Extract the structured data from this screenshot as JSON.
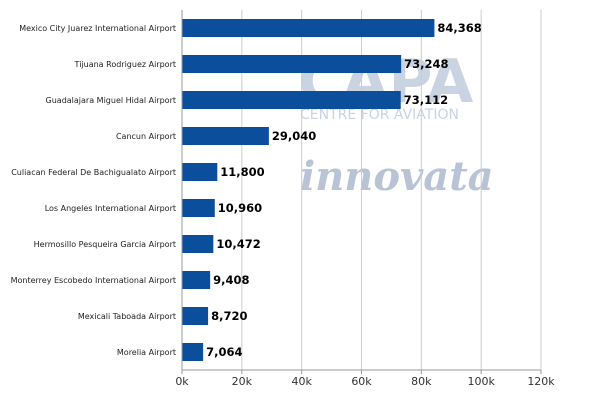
{
  "chart_data": {
    "type": "bar",
    "orientation": "horizontal",
    "title": "",
    "xlabel": "",
    "ylabel": "",
    "categories": [
      "Mexico City Juarez International Airport",
      "Tijuana Rodriguez Airport",
      "Guadalajara Miguel Hidal Airport",
      "Cancun Airport",
      "Culiacan Federal De Bachigualato Airport",
      "Los Angeles International Airport",
      "Hermosillo Pesqueira Garcia Airport",
      "Monterrey Escobedo International Airport",
      "Mexicali Taboada Airport",
      "Morelia Airport"
    ],
    "values": [
      84368,
      73248,
      73112,
      29040,
      11800,
      10960,
      10472,
      9408,
      8720,
      7064
    ],
    "value_labels": [
      "84,368",
      "73,248",
      "73,112",
      "29,040",
      "11,800",
      "10,960",
      "10,472",
      "9,408",
      "8,720",
      "7,064"
    ],
    "xlim": [
      0,
      120000
    ],
    "xticks": [
      0,
      20000,
      40000,
      60000,
      80000,
      100000,
      120000
    ],
    "xtick_labels": [
      "0k",
      "20k",
      "40k",
      "60k",
      "80k",
      "100k",
      "120k"
    ],
    "grid": true,
    "legend": "none",
    "colors": {
      "bar": "#0b4f9c",
      "grid": "#cccccc"
    }
  },
  "watermarks": {
    "capa": "CAPA",
    "capa_sub": "CENTRE FOR AVIATION",
    "innovata": "innovata"
  }
}
